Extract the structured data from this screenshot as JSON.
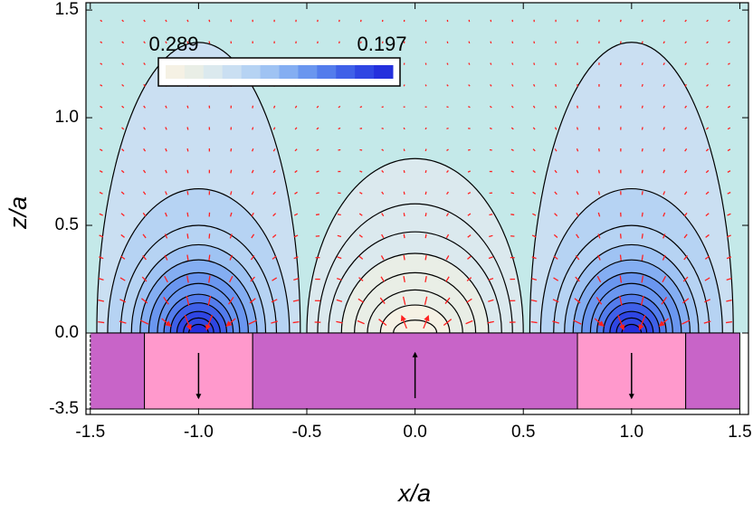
{
  "chart_data": {
    "type": "contour",
    "x_label": "x/a",
    "y_label": "z/a",
    "xlim": [
      -1.52,
      1.54
    ],
    "ylim": [
      0,
      1.534
    ],
    "xticks": [
      -1.5,
      {
        "value": -1,
        "label": "-1.0"
      },
      -0.5,
      {
        "value": 0,
        "label": "0.0"
      },
      0.5,
      {
        "value": 1,
        "label": "1.0"
      },
      1.5
    ],
    "yticks": [
      {
        "value": 0,
        "label": "0.0"
      },
      0.5,
      {
        "value": 1,
        "label": "1.0"
      },
      1.5
    ],
    "background": "#c4e9e9",
    "colorbar": {
      "labels": [
        "0.289",
        "0.197"
      ],
      "colors": [
        "#f5f1e4",
        "#e9eee6",
        "#dbe9ee",
        "#cadff2",
        "#b6d3f3",
        "#9fc3f3",
        "#84aef2",
        "#6a96ef",
        "#537cec",
        "#3f60e8",
        "#2f46e3",
        "#2430dd"
      ]
    },
    "magnet": {
      "ylim": [
        -3.75,
        0
      ],
      "yticks": [
        -3.5
      ],
      "domains": [
        {
          "x": [
            -1.5,
            -1.25
          ],
          "color": "#c864c8"
        },
        {
          "x": [
            -1.25,
            -0.75
          ],
          "color": "#ff99cc",
          "arrow": "down"
        },
        {
          "x": [
            -0.75,
            0.75
          ],
          "color": "#c864c8",
          "arrow": "up"
        },
        {
          "x": [
            0.75,
            1.25
          ],
          "color": "#ff99cc",
          "arrow": "down"
        },
        {
          "x": [
            1.25,
            1.5
          ],
          "color": "#c864c8"
        }
      ]
    }
  }
}
